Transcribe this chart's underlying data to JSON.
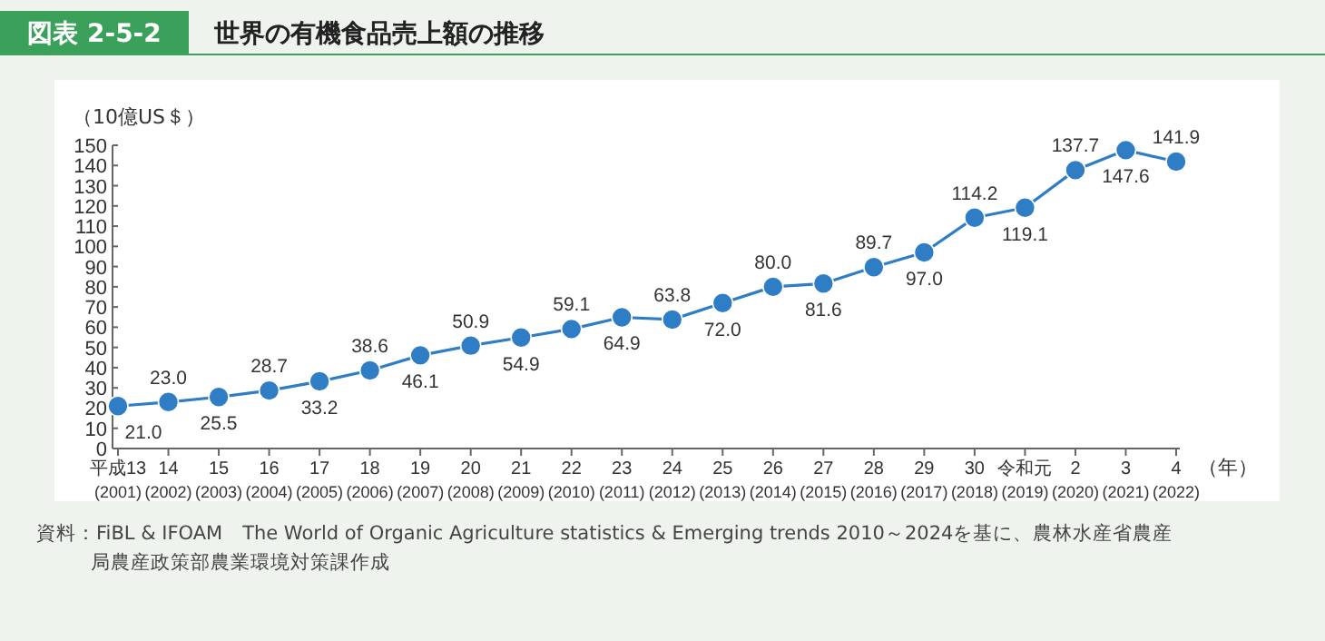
{
  "chart_data": {
    "type": "line",
    "subtitle": "図表 2-5-2",
    "title": "世界の有機食品売上額の推移",
    "ylabel": "（10億US＄）",
    "xlabel": "（年）",
    "categories": [
      "平成13\n(2001)",
      "14\n(2002)",
      "15\n(2003)",
      "16\n(2004)",
      "17\n(2005)",
      "18\n(2006)",
      "19\n(2007)",
      "20\n(2008)",
      "21\n(2009)",
      "22\n(2010)",
      "23\n(2011)",
      "24\n(2012)",
      "25\n(2013)",
      "26\n(2014)",
      "27\n(2015)",
      "28\n(2016)",
      "29\n(2017)",
      "30\n(2018)",
      "令和元\n(2019)",
      "2\n(2020)",
      "3\n(2021)",
      "4\n(2022)"
    ],
    "series": [
      {
        "color": "#2f7dc4",
        "values": [
          21.0,
          23.0,
          25.5,
          28.7,
          33.2,
          38.6,
          46.1,
          50.9,
          54.9,
          59.1,
          64.9,
          63.8,
          72.0,
          80.0,
          81.6,
          89.7,
          97.0,
          114.2,
          119.1,
          137.7,
          147.6,
          141.9
        ],
        "value_labels": [
          "21.0",
          "23.0",
          "25.5",
          "28.7",
          "33.2",
          "38.6",
          "46.1",
          "50.9",
          "54.9",
          "59.1",
          "64.9",
          "63.8",
          "72.0",
          "80.0",
          "81.6",
          "89.7",
          "97.0",
          "114.2",
          "119.1",
          "137.7",
          "147.6",
          "141.9"
        ]
      }
    ],
    "ylim": [
      0,
      150
    ],
    "yticks": [
      0,
      10,
      20,
      30,
      40,
      50,
      60,
      70,
      80,
      90,
      100,
      110,
      120,
      130,
      140,
      150
    ],
    "marker": "circle",
    "annotations": [
      "資料：FiBL & IFOAM　The World of Organic Agriculture statistics & Emerging trends 2010～2024を基に、農林水産省農産局農産政策部農業環境対策課作成"
    ]
  }
}
